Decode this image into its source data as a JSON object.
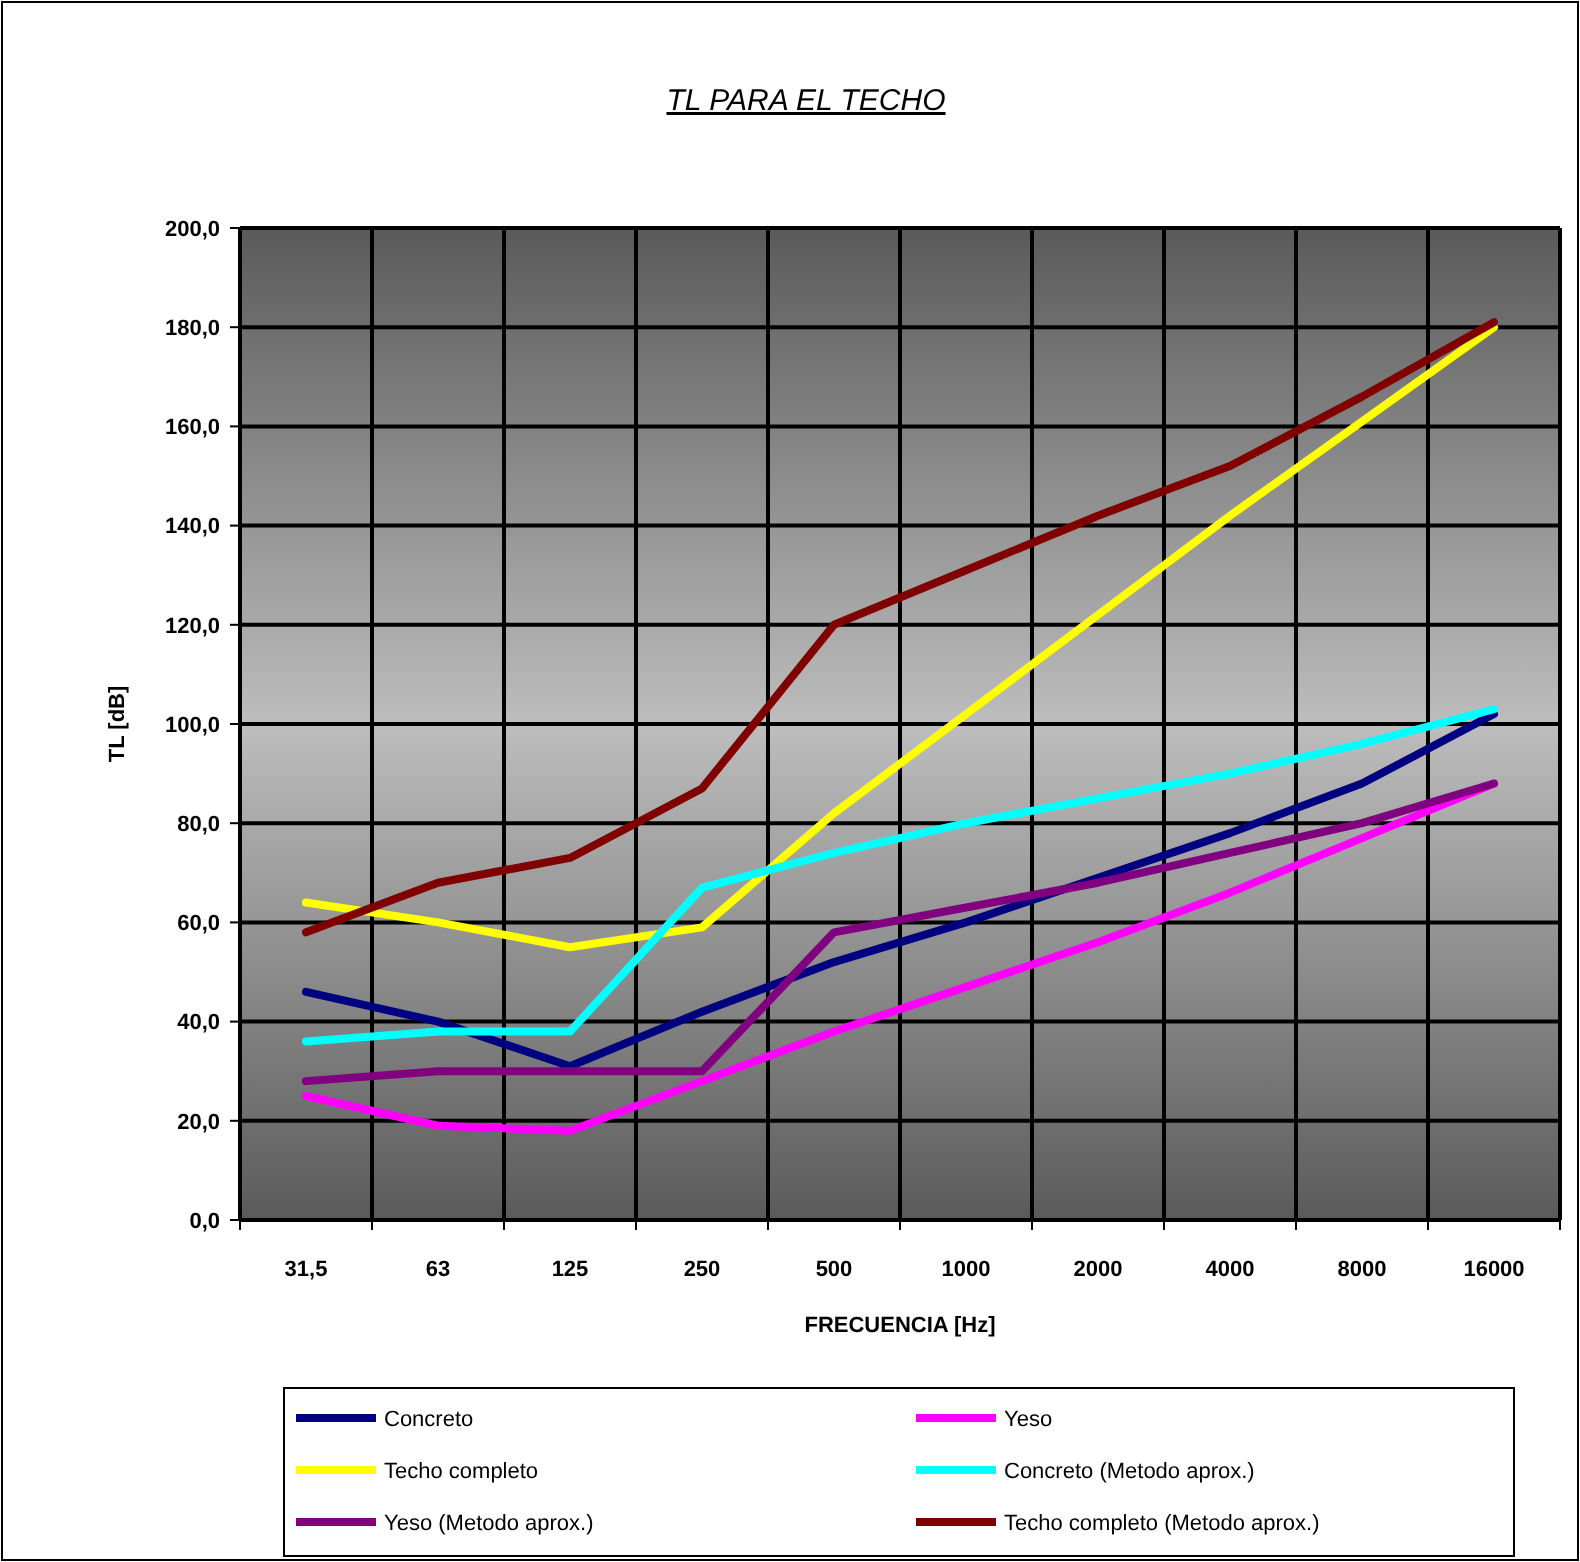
{
  "chart_data": {
    "type": "line",
    "title": "TL PARA EL TECHO",
    "xlabel": "FRECUENCIA [Hz]",
    "ylabel": "TL [dB]",
    "categories": [
      "31,5",
      "63",
      "125",
      "250",
      "500",
      "1000",
      "2000",
      "4000",
      "8000",
      "16000"
    ],
    "ylim": [
      0,
      200
    ],
    "yticks": [
      {
        "value": 0,
        "label": "0,0"
      },
      {
        "value": 20,
        "label": "20,0"
      },
      {
        "value": 40,
        "label": "40,0"
      },
      {
        "value": 60,
        "label": "60,0"
      },
      {
        "value": 80,
        "label": "80,0"
      },
      {
        "value": 100,
        "label": "100,0"
      },
      {
        "value": 120,
        "label": "120,0"
      },
      {
        "value": 140,
        "label": "140,0"
      },
      {
        "value": 160,
        "label": "160,0"
      },
      {
        "value": 180,
        "label": "180,0"
      },
      {
        "value": 200,
        "label": "200,0"
      }
    ],
    "grid": true,
    "legend": "bottom",
    "marker": "none",
    "line_style": "solid",
    "series": [
      {
        "name": "Concreto",
        "color": "#000080",
        "values": [
          46,
          40,
          31,
          42,
          52,
          60,
          69,
          78,
          88,
          102
        ]
      },
      {
        "name": "Yeso",
        "color": "#ff00ff",
        "values": [
          25,
          19,
          18,
          28,
          38,
          47,
          56,
          66,
          77,
          88
        ]
      },
      {
        "name": "Techo completo",
        "color": "#ffff00",
        "values": [
          64,
          60,
          55,
          59,
          82,
          102,
          122,
          142,
          161,
          180
        ]
      },
      {
        "name": "Concreto (Metodo aprox.)",
        "color": "#00ffff",
        "values": [
          36,
          38,
          38,
          67,
          74,
          80,
          85,
          90,
          96,
          103
        ]
      },
      {
        "name": "Yeso (Metodo aprox.)",
        "color": "#800080",
        "values": [
          28,
          30,
          30,
          30,
          58,
          63,
          68,
          74,
          80,
          88
        ]
      },
      {
        "name": "Techo completo (Metodo aprox.)",
        "color": "#800000",
        "values": [
          58,
          68,
          73,
          87,
          120,
          131,
          142,
          152,
          166,
          181
        ]
      }
    ]
  }
}
